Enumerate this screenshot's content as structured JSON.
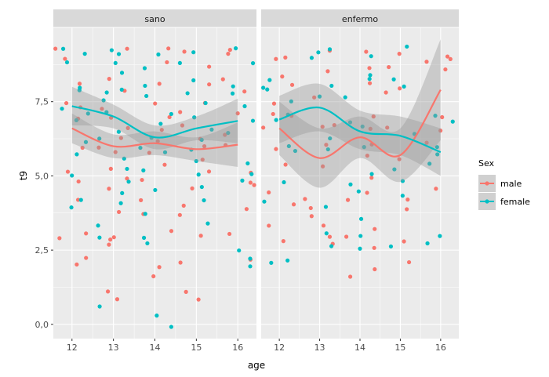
{
  "chart_data": {
    "type": "scatter",
    "xlabel": "age",
    "ylabel": "t9",
    "xlim": [
      11.55,
      16.45
    ],
    "ylim": [
      -0.48,
      10.0
    ],
    "x_ticks": [
      12,
      13,
      14,
      15,
      16
    ],
    "y_ticks": [
      0.0,
      2.5,
      5.0,
      7.5
    ],
    "y_tick_labels": [
      "0,0",
      "2,5",
      "5,0",
      "7,5"
    ],
    "grid": true,
    "legend": {
      "title": "Sex",
      "position": "right",
      "entries": [
        "male",
        "female"
      ]
    },
    "colors": {
      "male": "#F8766D",
      "female": "#00BFC4",
      "ribbon": "#999999",
      "panel_bg": "#EBEBEB",
      "strip_bg": "#D9D9D9"
    },
    "panels": [
      {
        "label": "sano",
        "points": {
          "male": {
            "12": [
              9.2,
              9.0,
              8.1,
              7.4,
              7.3,
              6.9,
              6.0,
              5.1,
              4.9,
              4.2,
              3.0,
              2.9,
              2.2,
              2.0
            ],
            "13": [
              9.2,
              8.3,
              7.9,
              7.3,
              7.0,
              6.6,
              6.2,
              6.0,
              5.8,
              5.3,
              5.0,
              4.6,
              3.7,
              3.0,
              2.9,
              2.7,
              1.1,
              0.9
            ],
            "14": [
              9.3,
              8.8,
              8.1,
              7.4,
              7.0,
              6.6,
              6.2,
              5.8,
              5.3,
              4.8,
              4.2,
              3.8,
              3.2,
              2.0,
              1.6
            ],
            "15": [
              9.1,
              8.6,
              8.0,
              7.5,
              7.2,
              6.8,
              6.3,
              6.0,
              5.6,
              5.2,
              4.5,
              4.0,
              3.6,
              2.9,
              2.0,
              1.0,
              0.8
            ],
            "16": [
              9.3,
              9.1,
              8.2,
              7.8,
              7.2,
              6.3,
              6.0,
              5.2,
              4.7,
              4.6,
              3.9,
              3.0,
              2.2
            ]
          },
          "female": {
            "12": [
              9.3,
              9.1,
              8.8,
              8.0,
              7.9,
              7.3,
              7.0,
              6.8,
              6.2,
              5.8,
              5.0,
              4.1,
              4.0
            ],
            "13": [
              9.3,
              9.1,
              8.8,
              8.5,
              8.0,
              7.8,
              7.5,
              7.2,
              6.5,
              6.2,
              5.5,
              5.2,
              4.9,
              4.4,
              4.0,
              3.4,
              3.0,
              0.7
            ],
            "14": [
              9.0,
              8.7,
              8.0,
              7.7,
              7.1,
              6.7,
              6.3,
              6.0,
              5.7,
              5.1,
              4.6,
              3.7,
              3.0,
              2.7,
              0.3,
              0.0
            ],
            "15": [
              9.2,
              8.9,
              8.3,
              7.7,
              7.4,
              6.9,
              6.5,
              6.2,
              5.9,
              5.5,
              5.0,
              4.6,
              4.1,
              3.3
            ],
            "16": [
              9.3,
              8.7,
              8.1,
              7.7,
              7.3,
              6.8,
              6.5,
              5.5,
              5.0,
              4.8,
              2.5,
              2.2,
              2.0
            ]
          }
        },
        "smooth": {
          "male": {
            "fit": [
              6.6,
              6.0,
              6.1,
              5.9,
              6.05
            ],
            "lower": [
              6.1,
              5.6,
              5.7,
              5.5,
              5.3
            ],
            "upper": [
              7.1,
              6.4,
              6.5,
              6.3,
              6.8
            ]
          },
          "female": {
            "fit": [
              7.35,
              7.0,
              6.3,
              6.6,
              6.85
            ],
            "lower": [
              6.7,
              6.6,
              5.9,
              6.2,
              6.1
            ],
            "upper": [
              8.0,
              7.4,
              6.7,
              7.0,
              7.6
            ]
          }
        }
      },
      {
        "label": "enfermo",
        "points": {
          "male": {
            "12": [
              9.0,
              9.0,
              8.4,
              8.0,
              7.4,
              7.1,
              7.0,
              6.7,
              6.0,
              5.3,
              4.5,
              4.0,
              3.4,
              2.9
            ],
            "13": [
              9.2,
              8.6,
              7.6,
              6.7,
              6.6,
              6.0,
              5.4,
              4.2,
              3.9,
              3.7,
              3.3,
              3.0,
              2.8
            ],
            "14": [
              9.2,
              8.6,
              8.2,
              7.0,
              6.6,
              6.0,
              5.6,
              5.0,
              4.5,
              4.1,
              3.3,
              3.0,
              2.5,
              1.9,
              1.7
            ],
            "15": [
              9.1,
              8.7,
              8.0,
              7.9,
              6.6,
              5.5,
              4.2,
              3.9,
              2.7,
              2.0
            ],
            "16": [
              9.0,
              9.0,
              8.8,
              8.6,
              7.0,
              6.6,
              6.2,
              4.6
            ]
          },
          "female": {
            "12": [
              8.2,
              8.0,
              7.9,
              7.6,
              7.1,
              6.8,
              6.1,
              5.9,
              4.8,
              4.2,
              2.1,
              2.0
            ],
            "13": [
              9.3,
              9.2,
              8.9,
              8.0,
              7.6,
              6.2,
              5.8,
              4.0,
              3.1,
              2.7
            ],
            "14": [
              9.0,
              8.4,
              8.2,
              7.7,
              6.9,
              6.6,
              5.9,
              5.0,
              4.7,
              4.5,
              3.5,
              3.0,
              2.6
            ],
            "15": [
              9.3,
              8.3,
              8.0,
              6.4,
              5.2,
              4.8,
              4.4,
              2.7
            ],
            "16": [
              7.0,
              6.8,
              6.0,
              5.8,
              5.5,
              3.0,
              2.7
            ]
          }
        },
        "smooth": {
          "male": {
            "fit": [
              6.6,
              5.6,
              6.3,
              5.7,
              7.9
            ],
            "lower": [
              5.7,
              4.6,
              5.6,
              4.8,
              6.2
            ],
            "upper": [
              7.5,
              6.6,
              7.0,
              6.6,
              9.6
            ]
          },
          "female": {
            "fit": [
              6.9,
              7.3,
              6.5,
              6.35,
              5.8
            ],
            "lower": [
              6.1,
              6.5,
              5.9,
              5.7,
              5.0
            ],
            "upper": [
              7.7,
              8.1,
              7.2,
              7.0,
              6.6
            ]
          }
        }
      }
    ]
  }
}
